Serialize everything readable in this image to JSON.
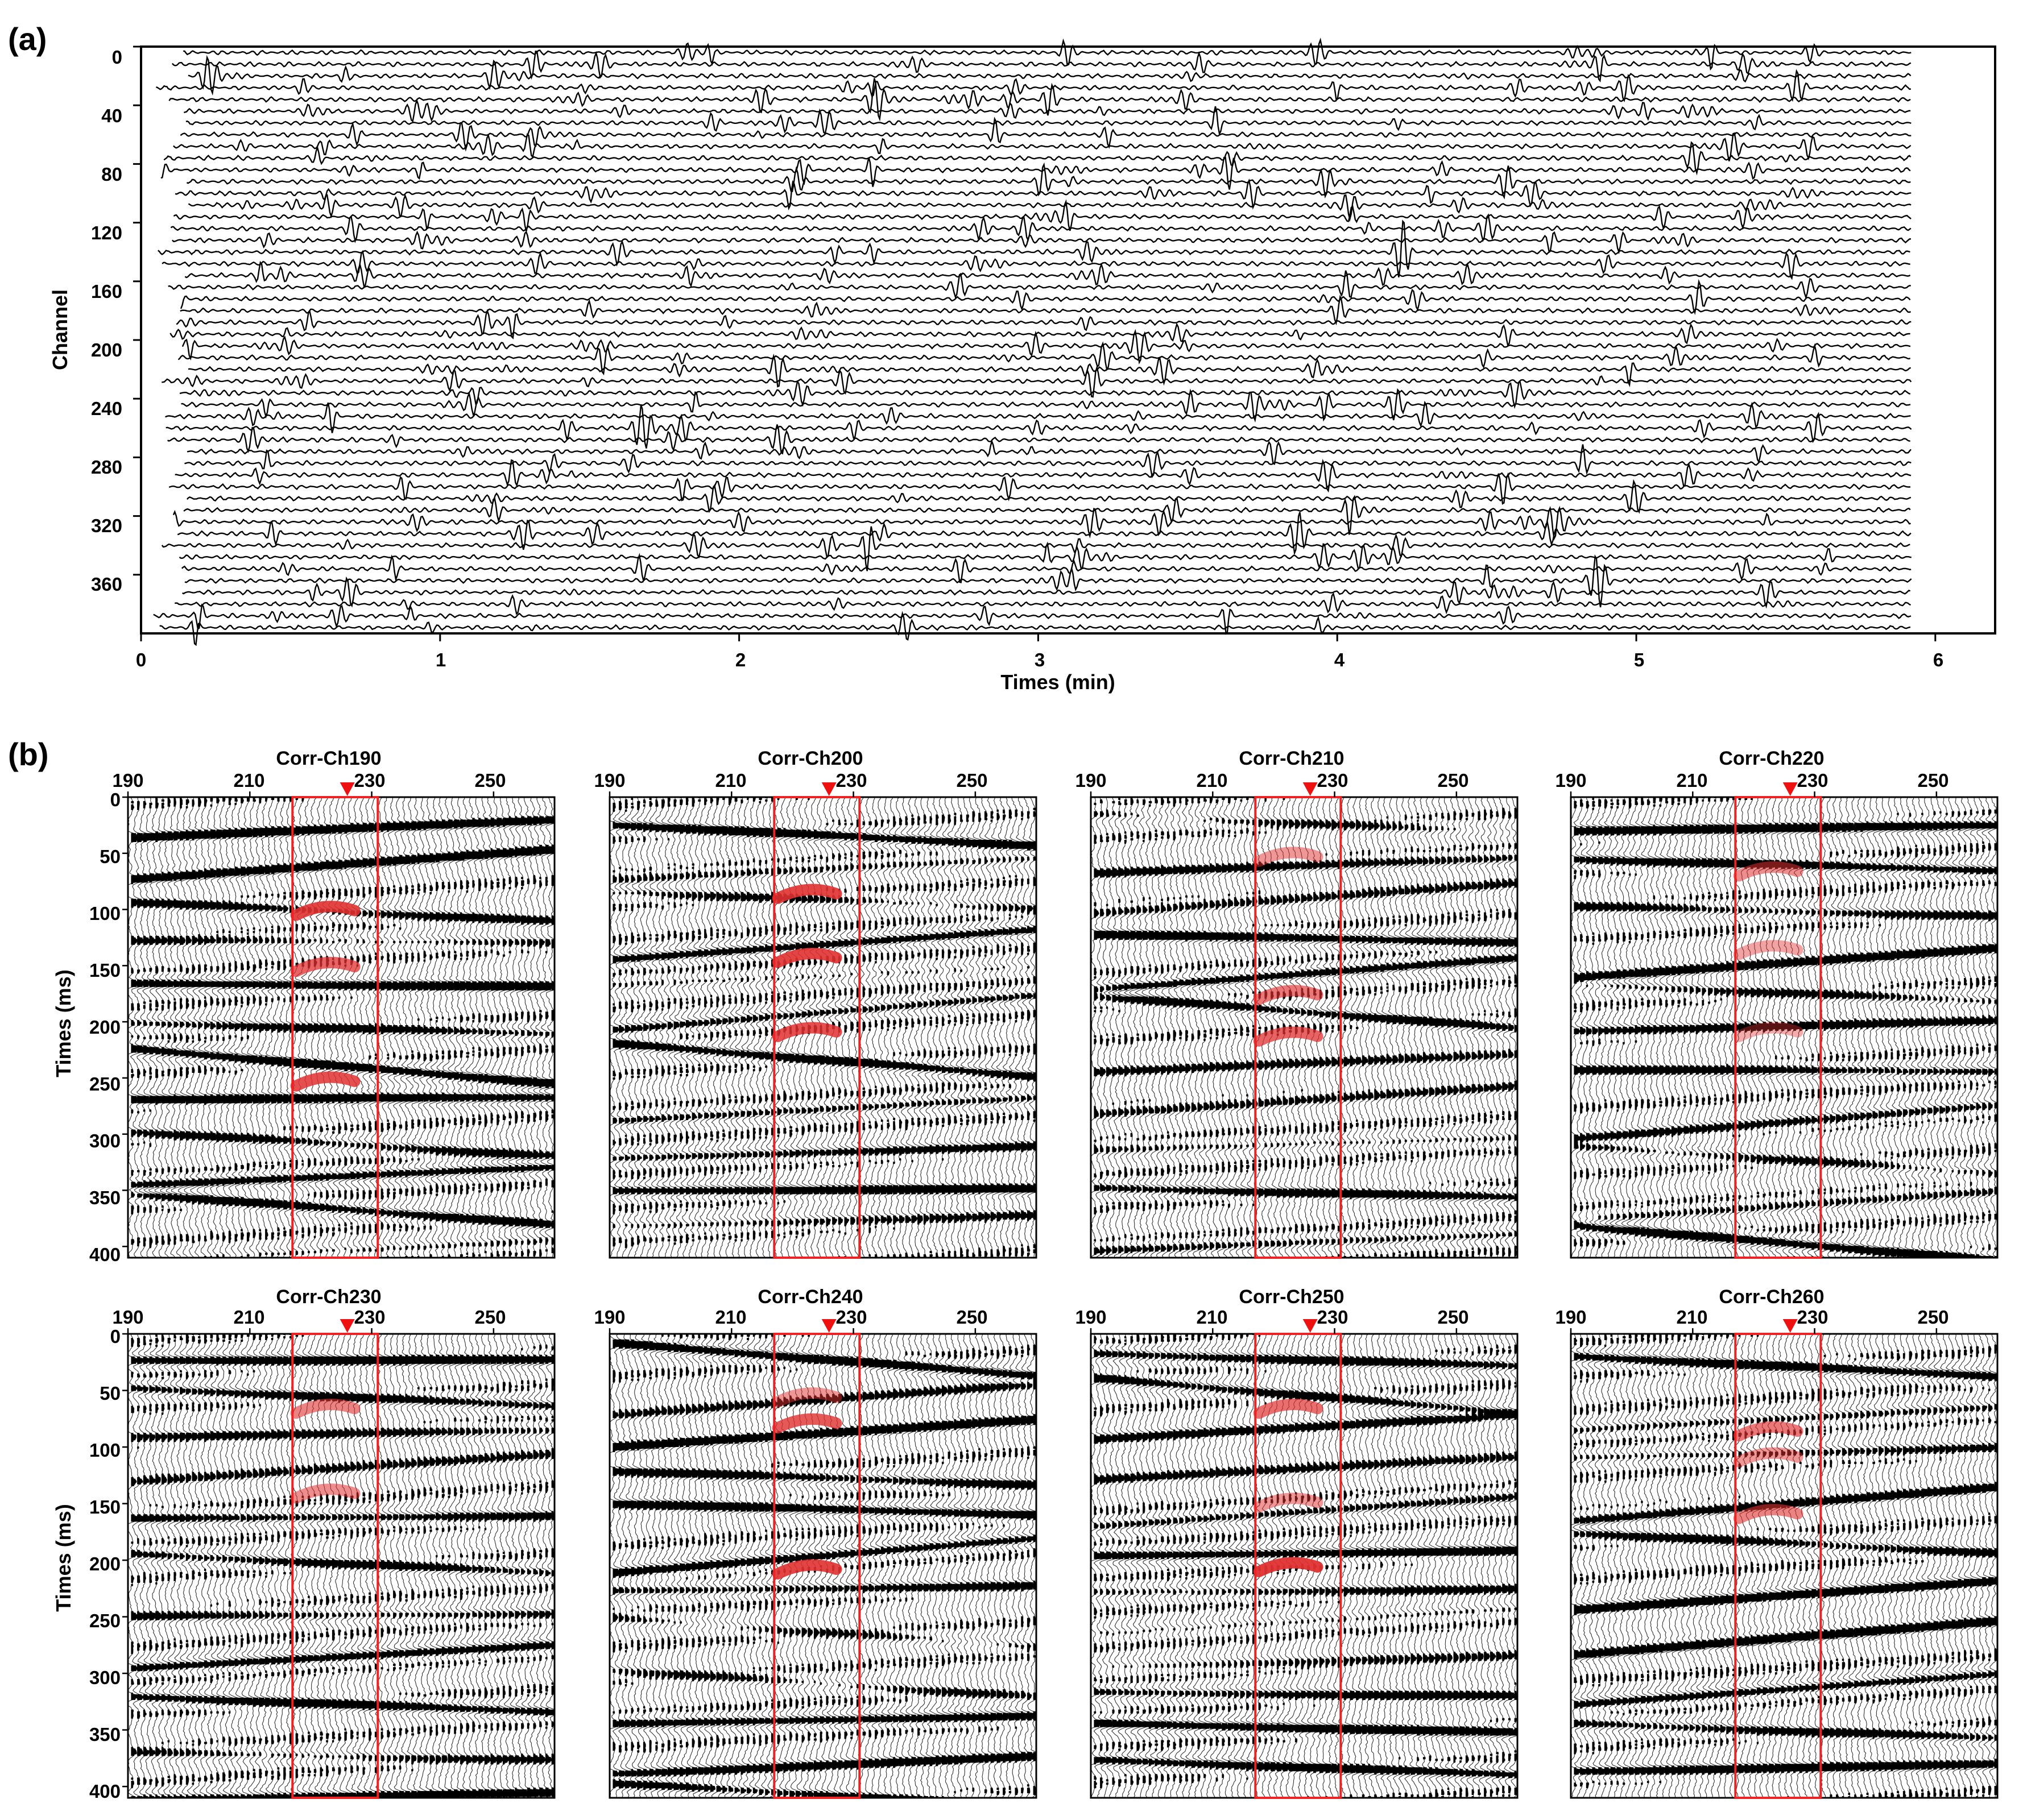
{
  "panels": {
    "a": {
      "label": "(a)",
      "chart_data": {
        "type": "line",
        "xlabel": "Times (min)",
        "ylabel": "Channel",
        "xlim": [
          0,
          6.2
        ],
        "ylim": [
          0,
          400
        ],
        "x_ticks": [
          "0",
          "1",
          "2",
          "3",
          "4",
          "5",
          "6"
        ],
        "y_ticks": [
          "0",
          "40",
          "80",
          "120",
          "160",
          "200",
          "240",
          "280",
          "320",
          "360"
        ],
        "trace_spacing_channels": 8,
        "grid": false,
        "legend": "none"
      }
    },
    "b": {
      "label": "(b)",
      "x_ticks": [
        "190",
        "210",
        "230",
        "250"
      ],
      "y_ticks": [
        "0",
        "50",
        "100",
        "150",
        "200",
        "250",
        "300",
        "350",
        "400"
      ],
      "ylabel": "Times (ms)",
      "xlim": [
        190,
        260
      ],
      "ylim": [
        0,
        410
      ],
      "window": [
        217,
        231
      ],
      "marker_x": 226,
      "colors": {
        "window": "#ee2222",
        "marker": "#ee1111",
        "highlight": "#e03030"
      },
      "subplots": [
        {
          "title": "Corr-Ch190",
          "highlights": [
            [
              100,
              0.9
            ],
            [
              150,
              0.75
            ],
            [
              252,
              0.85
            ]
          ]
        },
        {
          "title": "Corr-Ch200",
          "highlights": [
            [
              85,
              0.9
            ],
            [
              142,
              0.9
            ],
            [
              208,
              0.85
            ]
          ]
        },
        {
          "title": "Corr-Ch210",
          "highlights": [
            [
              52,
              0.5
            ],
            [
              175,
              0.65
            ],
            [
              212,
              0.75
            ]
          ]
        },
        {
          "title": "Corr-Ch220",
          "highlights": [
            [
              65,
              0.55
            ],
            [
              135,
              0.45
            ],
            [
              208,
              0.4
            ]
          ]
        },
        {
          "title": "Corr-Ch230",
          "highlights": [
            [
              65,
              0.6
            ],
            [
              140,
              0.55
            ]
          ]
        },
        {
          "title": "Corr-Ch240",
          "highlights": [
            [
              55,
              0.5
            ],
            [
              78,
              0.8
            ],
            [
              207,
              0.9
            ]
          ]
        },
        {
          "title": "Corr-Ch250",
          "highlights": [
            [
              65,
              0.7
            ],
            [
              148,
              0.5
            ],
            [
              205,
              0.95
            ]
          ]
        },
        {
          "title": "Corr-Ch260",
          "highlights": [
            [
              85,
              0.65
            ],
            [
              108,
              0.5
            ],
            [
              158,
              0.6
            ]
          ]
        }
      ]
    }
  }
}
